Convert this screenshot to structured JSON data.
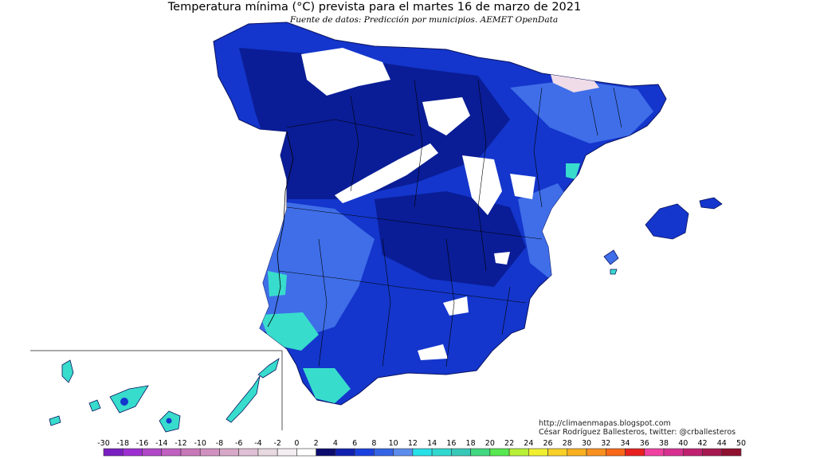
{
  "title": "Temperatura mínima (°C) prevista para el martes 16 de marzo de 2021",
  "subtitle": "Fuente de datos: Predicción por municipios. AEMET OpenData",
  "credits": {
    "url": "http://climaenmapas.blogspot.com",
    "author": "César Rodríguez Ballesteros, twitter: @crballesteros"
  },
  "legend": {
    "labels": [
      "-30",
      "-18",
      "-16",
      "-14",
      "-12",
      "-10",
      "-8",
      "-6",
      "-4",
      "-2",
      "0",
      "2",
      "4",
      "6",
      "8",
      "10",
      "12",
      "14",
      "16",
      "18",
      "20",
      "22",
      "24",
      "26",
      "28",
      "30",
      "32",
      "34",
      "36",
      "38",
      "40",
      "42",
      "44",
      "50"
    ],
    "colors": [
      "#7a1fc2",
      "#9d2fd2",
      "#b048c8",
      "#c060c0",
      "#c878b8",
      "#d090c0",
      "#d8a8c8",
      "#e0c0d4",
      "#e8d8e0",
      "#f4eef2",
      "#ffffff",
      "#0c0c6e",
      "#1020b0",
      "#1b40e0",
      "#3464e6",
      "#5c8cec",
      "#28e0e8",
      "#30d8d0",
      "#38c8b8",
      "#40d880",
      "#58e850",
      "#b8f038",
      "#f0f030",
      "#f8d028",
      "#f8b020",
      "#f89020",
      "#f86818",
      "#e82020",
      "#f040a0",
      "#d83090",
      "#c02070",
      "#a81850",
      "#901030"
    ]
  },
  "colors": {
    "deep_blue": "#0a1d96",
    "mid_blue": "#1436cc",
    "light_blue": "#3f6ee8",
    "cyan": "#38dccc",
    "snow": "#ffffff",
    "sea": "#ffffff",
    "border": "#000000"
  }
}
